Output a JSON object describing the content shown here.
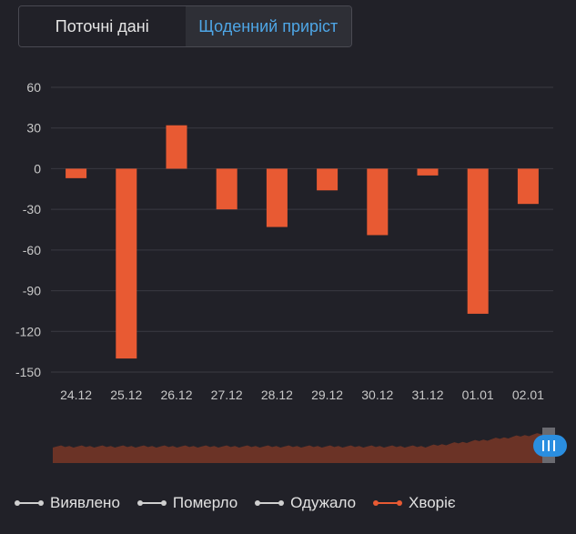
{
  "tabs": [
    {
      "label": "Поточні дані",
      "active": false
    },
    {
      "label": "Щоденний приріст",
      "active": true
    }
  ],
  "colors": {
    "bar": "#e85a33",
    "accent": "#4ea6e6",
    "grid": "#3a3a42",
    "navigator": "#6b3326",
    "scrollbar_handle": "#2a8ee0"
  },
  "legend": [
    {
      "label": "Виявлено",
      "color": "#cfcfcf",
      "active": false
    },
    {
      "label": "Померло",
      "color": "#cfcfcf",
      "active": false
    },
    {
      "label": "Одужало",
      "color": "#cfcfcf",
      "active": false
    },
    {
      "label": "Хворіє",
      "color": "#e85a33",
      "active": true
    }
  ],
  "chart_data": {
    "type": "bar",
    "categories": [
      "24.12",
      "25.12",
      "26.12",
      "27.12",
      "28.12",
      "29.12",
      "30.12",
      "31.12",
      "01.01",
      "02.01"
    ],
    "series": [
      {
        "name": "Хворіє",
        "values": [
          -7,
          -140,
          32,
          -30,
          -43,
          -16,
          -49,
          -5,
          -107,
          -26
        ]
      }
    ],
    "ylim": [
      -150,
      60
    ],
    "yticks": [
      60,
      30,
      0,
      -30,
      -60,
      -90,
      -120,
      -150
    ],
    "grid": true,
    "legend_position": "bottom-left"
  }
}
